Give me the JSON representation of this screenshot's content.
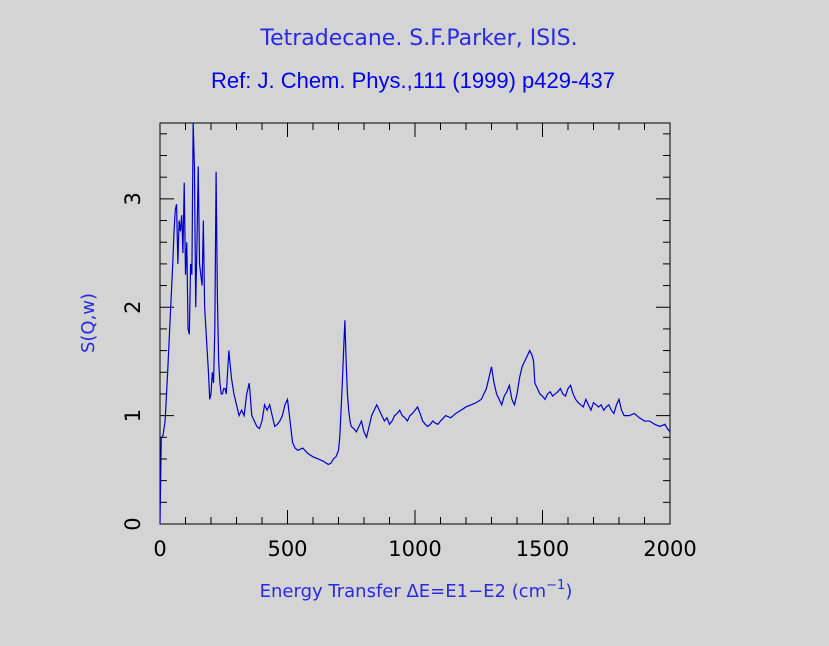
{
  "chart_data": {
    "type": "line",
    "title": "Tetradecane. S.F.Parker, ISIS.",
    "subtitle": "Ref: J. Chem. Phys.,111 (1999) p429-437",
    "xlabel_main": "Energy Transfer ΔE=E1−E2 (cm",
    "xlabel_sup": "−1",
    "xlabel_end": ")",
    "ylabel": "S(Q,w)",
    "xlim": [
      0,
      2000
    ],
    "ylim": [
      0,
      3.7
    ],
    "xticks": [
      0,
      500,
      1000,
      1500,
      2000
    ],
    "xtick_labels": [
      "0",
      "500",
      "1000",
      "1500",
      "2000"
    ],
    "yticks": [
      0,
      1,
      2,
      3
    ],
    "ytick_labels": [
      "0",
      "1",
      "2",
      "3"
    ],
    "grid": false,
    "line_color": "#0000cc",
    "series": [
      {
        "x": [
          0,
          5,
          8,
          12,
          20,
          30,
          40,
          50,
          55,
          60,
          65,
          70,
          75,
          80,
          85,
          90,
          95,
          100,
          105,
          110,
          115,
          120,
          125,
          130,
          135,
          140,
          145,
          150,
          155,
          160,
          165,
          170,
          175,
          180,
          185,
          190,
          195,
          200,
          205,
          210,
          215,
          220,
          225,
          230,
          235,
          240,
          245,
          250,
          255,
          260,
          265,
          270,
          280,
          290,
          300,
          310,
          320,
          330,
          340,
          350,
          360,
          370,
          380,
          390,
          400,
          410,
          420,
          430,
          440,
          450,
          460,
          470,
          480,
          490,
          500,
          505,
          510,
          520,
          530,
          540,
          560,
          580,
          600,
          620,
          640,
          660,
          670,
          680,
          690,
          700,
          705,
          710,
          715,
          720,
          725,
          730,
          735,
          740,
          745,
          750,
          760,
          770,
          780,
          790,
          800,
          810,
          820,
          830,
          840,
          850,
          860,
          870,
          880,
          890,
          900,
          910,
          920,
          930,
          940,
          950,
          960,
          970,
          980,
          990,
          1000,
          1010,
          1020,
          1030,
          1040,
          1050,
          1060,
          1070,
          1080,
          1090,
          1100,
          1120,
          1140,
          1160,
          1180,
          1200,
          1220,
          1240,
          1260,
          1280,
          1290,
          1300,
          1310,
          1320,
          1330,
          1340,
          1350,
          1360,
          1370,
          1380,
          1390,
          1400,
          1410,
          1420,
          1430,
          1440,
          1450,
          1460,
          1465,
          1470,
          1480,
          1490,
          1500,
          1510,
          1520,
          1530,
          1540,
          1550,
          1560,
          1570,
          1580,
          1590,
          1600,
          1610,
          1620,
          1630,
          1640,
          1650,
          1660,
          1670,
          1680,
          1690,
          1700,
          1710,
          1720,
          1730,
          1740,
          1750,
          1760,
          1770,
          1780,
          1790,
          1800,
          1810,
          1820,
          1840,
          1860,
          1880,
          1900,
          1920,
          1940,
          1960,
          1980,
          1990,
          2000
        ],
        "y": [
          0.0,
          0.8,
          0.8,
          0.82,
          0.95,
          1.4,
          1.9,
          2.4,
          2.7,
          2.9,
          2.95,
          2.4,
          2.8,
          2.7,
          2.85,
          2.5,
          3.15,
          2.3,
          2.6,
          1.8,
          1.75,
          2.4,
          2.3,
          3.7,
          3.3,
          2.0,
          2.6,
          3.3,
          2.4,
          2.3,
          2.2,
          2.8,
          2.0,
          1.8,
          1.6,
          1.4,
          1.15,
          1.2,
          1.4,
          1.3,
          1.8,
          3.25,
          2.1,
          1.5,
          1.3,
          1.2,
          1.2,
          1.25,
          1.25,
          1.2,
          1.4,
          1.6,
          1.35,
          1.2,
          1.1,
          1.0,
          1.05,
          1.0,
          1.2,
          1.3,
          1.0,
          0.95,
          0.9,
          0.88,
          0.95,
          1.1,
          1.05,
          1.1,
          1.0,
          0.9,
          0.92,
          0.95,
          1.0,
          1.1,
          1.15,
          1.05,
          0.95,
          0.75,
          0.7,
          0.68,
          0.7,
          0.65,
          0.62,
          0.6,
          0.58,
          0.55,
          0.56,
          0.6,
          0.62,
          0.68,
          0.8,
          1.05,
          1.3,
          1.6,
          1.88,
          1.5,
          1.2,
          1.05,
          0.95,
          0.9,
          0.88,
          0.85,
          0.9,
          0.95,
          0.85,
          0.8,
          0.9,
          1.0,
          1.05,
          1.1,
          1.05,
          1.0,
          0.95,
          0.98,
          0.92,
          0.95,
          1.0,
          1.02,
          1.05,
          1.0,
          0.98,
          0.95,
          1.0,
          1.02,
          1.05,
          1.08,
          1.02,
          0.95,
          0.92,
          0.9,
          0.92,
          0.95,
          0.93,
          0.92,
          0.95,
          1.0,
          0.98,
          1.02,
          1.05,
          1.08,
          1.1,
          1.12,
          1.15,
          1.25,
          1.35,
          1.45,
          1.3,
          1.2,
          1.15,
          1.1,
          1.18,
          1.22,
          1.28,
          1.15,
          1.1,
          1.2,
          1.35,
          1.45,
          1.5,
          1.55,
          1.6,
          1.55,
          1.5,
          1.3,
          1.25,
          1.2,
          1.18,
          1.15,
          1.2,
          1.22,
          1.18,
          1.2,
          1.22,
          1.25,
          1.2,
          1.18,
          1.25,
          1.28,
          1.2,
          1.15,
          1.12,
          1.1,
          1.08,
          1.15,
          1.1,
          1.05,
          1.12,
          1.1,
          1.08,
          1.1,
          1.05,
          1.08,
          1.1,
          1.05,
          1.02,
          1.1,
          1.15,
          1.05,
          1.0,
          1.0,
          1.02,
          0.98,
          0.95,
          0.95,
          0.92,
          0.9,
          0.92,
          0.88,
          0.85
        ]
      }
    ]
  }
}
